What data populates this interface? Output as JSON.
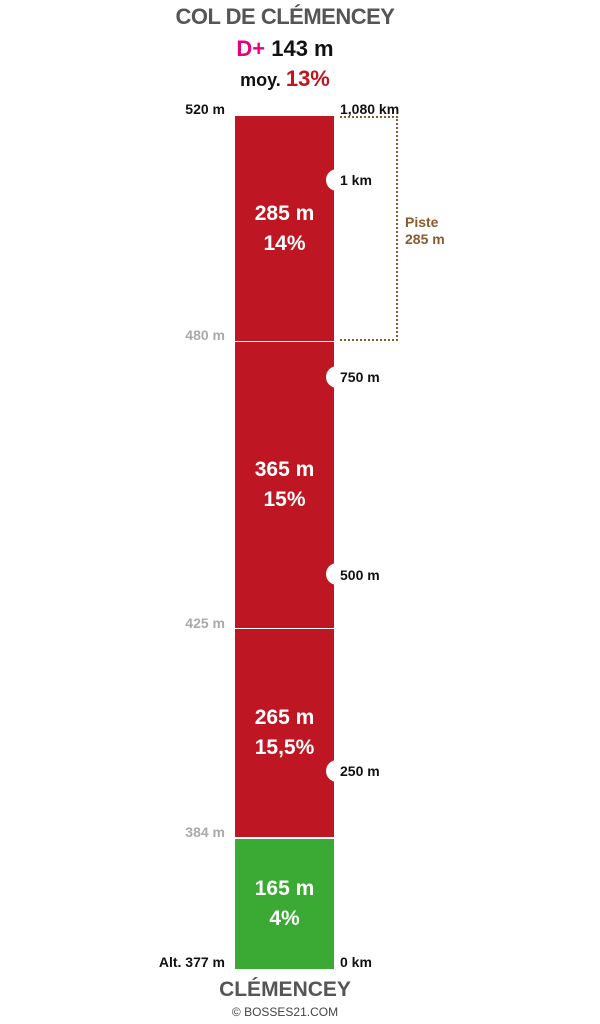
{
  "header": {
    "title": "COL DE CLÉMENCEY",
    "dplus_label": "D+",
    "dplus_value": "143 m",
    "avg_label": "moy.",
    "avg_value": "13%"
  },
  "segments": [
    {
      "length": "285 m",
      "grade": "14%",
      "color": "#be1622"
    },
    {
      "length": "365 m",
      "grade": "15%",
      "color": "#be1622"
    },
    {
      "length": "265 m",
      "grade": "15,5%",
      "color": "#be1622"
    },
    {
      "length": "165 m",
      "grade": "4%",
      "color": "#3aaa35"
    }
  ],
  "altitudes": {
    "top": "520 m",
    "a480": "480 m",
    "a425": "425 m",
    "a384": "384 m",
    "base": "Alt. 377 m"
  },
  "distances": {
    "top": "1,080 km",
    "d1km": "1 km",
    "d750": "750 m",
    "d500": "500 m",
    "d250": "250 m",
    "d0": "0 km"
  },
  "piste": {
    "label": "Piste",
    "value": "285 m",
    "color": "#8b5a2b"
  },
  "footer": {
    "place": "CLÉMENCEY",
    "copyright": "© BOSSES21.COM"
  }
}
